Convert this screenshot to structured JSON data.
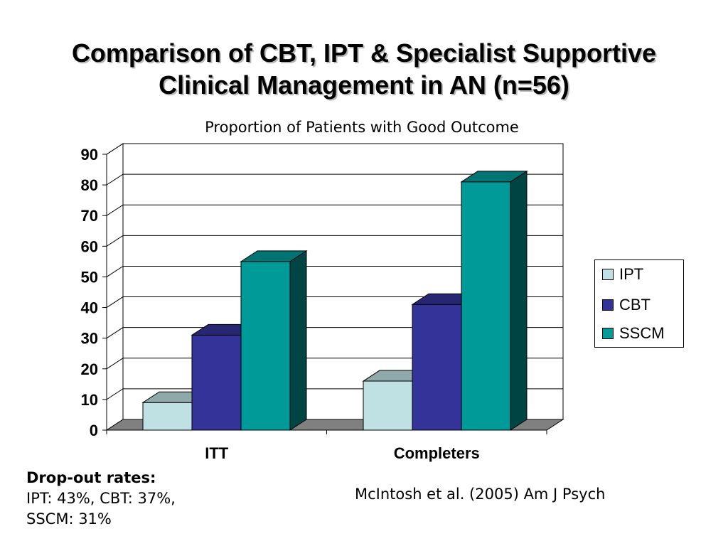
{
  "slide": {
    "title_line1": "Comparison of CBT, IPT & Specialist Supportive",
    "title_line2": "Clinical Management in AN (n=56)",
    "subtitle": "Proportion of Patients with Good Outcome",
    "dropout_heading": "Drop-out rates:",
    "dropout_line1": "IPT: 43%, CBT: 37%,",
    "dropout_line2": "SSCM: 31%",
    "citation": "McIntosh et al. (2005) Am J Psych"
  },
  "colors": {
    "IPT": "#bfe1e3",
    "CBT": "#333399",
    "SSCM": "#009a98",
    "floor": "#808080"
  },
  "chart_data": {
    "type": "bar",
    "style": "3d-clustered-column",
    "title": "Proportion of Patients with Good Outcome",
    "categories": [
      "ITT",
      "Completers"
    ],
    "series": [
      {
        "name": "IPT",
        "values": [
          9,
          16
        ]
      },
      {
        "name": "CBT",
        "values": [
          31,
          41
        ]
      },
      {
        "name": "SSCM",
        "values": [
          55,
          81
        ]
      }
    ],
    "ylim": [
      0,
      90
    ],
    "yticks": [
      "0",
      "10",
      "20",
      "30",
      "40",
      "50",
      "60",
      "70",
      "80",
      "90"
    ],
    "grid": true,
    "legend": "right"
  }
}
